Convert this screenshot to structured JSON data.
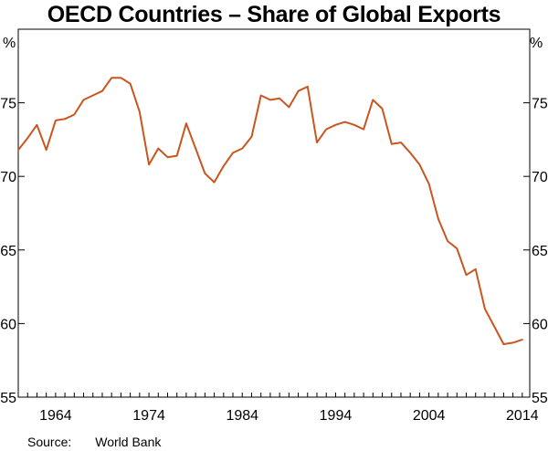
{
  "chart_data": {
    "type": "line",
    "title": "OECD Countries – Share of Global Exports",
    "ylabel_left": "%",
    "ylabel_right": "%",
    "xlabel": "",
    "ylim": [
      55,
      80
    ],
    "yticks": [
      55,
      60,
      65,
      70,
      75
    ],
    "xlim": [
      1960,
      2014.8
    ],
    "xticks": [
      1964,
      1974,
      1984,
      1994,
      2004,
      2014
    ],
    "grid": false,
    "series": [
      {
        "name": "OECD share of global exports",
        "color": "#c8561e",
        "x": [
          1960,
          1961,
          1962,
          1963,
          1964,
          1965,
          1966,
          1967,
          1968,
          1969,
          1970,
          1971,
          1972,
          1973,
          1974,
          1975,
          1976,
          1977,
          1978,
          1979,
          1980,
          1981,
          1982,
          1983,
          1984,
          1985,
          1986,
          1987,
          1988,
          1989,
          1990,
          1991,
          1992,
          1993,
          1994,
          1995,
          1996,
          1997,
          1998,
          1999,
          2000,
          2001,
          2002,
          2003,
          2004,
          2005,
          2006,
          2007,
          2008,
          2009,
          2010,
          2011,
          2012,
          2013,
          2014
        ],
        "values": [
          71.8,
          72.6,
          73.5,
          71.8,
          73.8,
          73.9,
          74.2,
          75.2,
          75.5,
          75.8,
          76.7,
          76.7,
          76.3,
          74.4,
          70.8,
          71.9,
          71.3,
          71.4,
          73.6,
          71.9,
          70.2,
          69.6,
          70.7,
          71.6,
          71.9,
          72.7,
          75.5,
          75.2,
          75.3,
          74.7,
          75.8,
          76.1,
          72.3,
          73.2,
          73.5,
          73.7,
          73.5,
          73.2,
          75.2,
          74.6,
          72.2,
          72.3,
          71.6,
          70.8,
          69.5,
          67.1,
          65.6,
          65.1,
          63.3,
          63.7,
          61.0,
          59.8,
          58.6,
          58.7,
          58.9
        ]
      }
    ]
  },
  "source": {
    "label": "Source:",
    "value": "World Bank"
  }
}
